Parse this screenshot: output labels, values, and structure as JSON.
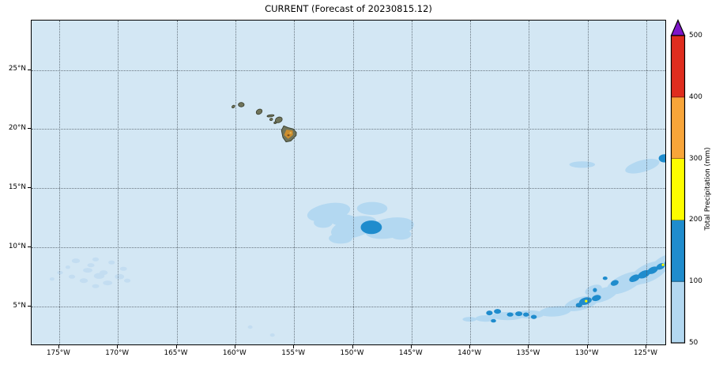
{
  "chart_data": {
    "type": "heatmap",
    "title": "CURRENT (Forecast of 20230815.12)",
    "ocean_color": "#d3e7f4",
    "grid": true,
    "x_axis": {
      "lon_range": [
        -177.35,
        -123.25
      ],
      "ticks": [
        {
          "label": "175°W",
          "lon": -175
        },
        {
          "label": "170°W",
          "lon": -170
        },
        {
          "label": "165°W",
          "lon": -165
        },
        {
          "label": "160°W",
          "lon": -160
        },
        {
          "label": "155°W",
          "lon": -155
        },
        {
          "label": "150°W",
          "lon": -150
        },
        {
          "label": "145°W",
          "lon": -145
        },
        {
          "label": "140°W",
          "lon": -140
        },
        {
          "label": "135°W",
          "lon": -135
        },
        {
          "label": "130°W",
          "lon": -130
        },
        {
          "label": "125°W",
          "lon": -125
        }
      ]
    },
    "y_axis": {
      "lat_range": [
        1.67,
        29.17
      ],
      "ticks": [
        {
          "label": "25°N",
          "lat": 25
        },
        {
          "label": "20°N",
          "lat": 20
        },
        {
          "label": "15°N",
          "lat": 15
        },
        {
          "label": "10°N",
          "lat": 10
        },
        {
          "label": "5°N",
          "lat": 5
        }
      ]
    },
    "colorbar": {
      "label": "Total Precipitation (mm)",
      "position": "right",
      "tick_labels": [
        "50",
        "100",
        "200",
        "300",
        "400",
        "500"
      ],
      "segments": [
        {
          "range": "50-100",
          "color": "#b3d8f1"
        },
        {
          "range": "100-200",
          "color": "#1f8ccd"
        },
        {
          "range": "200-300",
          "color": "#fdfd00"
        },
        {
          "range": "300-400",
          "color": "#f8a539"
        },
        {
          "range": "400-500",
          "color": "#df2d1e"
        }
      ],
      "over_arrow": {
        "range": ">500",
        "color": "#7e16c9"
      }
    },
    "islands": {
      "fill": "#70745a",
      "stroke": "#383d2c",
      "features": [
        {
          "name": "Niihau",
          "type": "ellipse",
          "lat": 21.9,
          "lon": -160.17,
          "w": 0.28,
          "h": 0.2,
          "rot": -40
        },
        {
          "name": "Kauai",
          "type": "ellipse",
          "lat": 22.06,
          "lon": -159.5,
          "w": 0.5,
          "h": 0.38,
          "rot": 0
        },
        {
          "name": "Oahu",
          "type": "ellipse",
          "lat": 21.47,
          "lon": -157.97,
          "w": 0.55,
          "h": 0.4,
          "rot": -35
        },
        {
          "name": "Molokai",
          "type": "ellipse",
          "lat": 21.12,
          "lon": -157.0,
          "w": 0.6,
          "h": 0.18,
          "rot": -8
        },
        {
          "name": "Lanai",
          "type": "ellipse",
          "lat": 20.82,
          "lon": -156.95,
          "w": 0.26,
          "h": 0.2,
          "rot": -20
        },
        {
          "name": "Kahoolawe",
          "type": "ellipse",
          "lat": 20.54,
          "lon": -156.6,
          "w": 0.24,
          "h": 0.16,
          "rot": -20
        },
        {
          "name": "Maui",
          "type": "ellipse",
          "lat": 20.78,
          "lon": -156.3,
          "w": 0.62,
          "h": 0.45,
          "rot": -25
        },
        {
          "name": "Hawaii Big Island",
          "type": "polygon",
          "points": [
            [
              20.27,
              -155.88
            ],
            [
              20.12,
              -155.5
            ],
            [
              20.02,
              -155.08
            ],
            [
              19.72,
              -154.8
            ],
            [
              19.45,
              -154.82
            ],
            [
              19.0,
              -155.28
            ],
            [
              18.92,
              -155.68
            ],
            [
              19.3,
              -155.95
            ],
            [
              19.9,
              -156.07
            ]
          ]
        }
      ],
      "big_island_detail": {
        "orange_fill": "#cd8e2e",
        "orange_polygon": [
          [
            19.95,
            -155.65
          ],
          [
            19.88,
            -155.12
          ],
          [
            19.5,
            -155.1
          ],
          [
            19.18,
            -155.5
          ],
          [
            19.5,
            -155.85
          ]
        ],
        "dark_spot": {
          "color": "#7a4a18",
          "lat": 19.48,
          "lon": -155.48,
          "w": 0.2,
          "h": 0.15
        },
        "tan_spot": {
          "color": "#e3c063",
          "lat": 19.68,
          "lon": -155.3,
          "w": 0.18,
          "h": 0.12
        }
      }
    },
    "precipitation": {
      "level_colors": {
        "trace": "#c3ddf1",
        "light": "#b3d8f1",
        "medium": "#1f8ccd",
        "heavy": "#fdfd00"
      },
      "blob_format": "[lat, lon, width_deg, height_deg, rotation_deg]",
      "regions": [
        {
          "name": "west-scattered-showers",
          "level": "trace",
          "blobs": [
            [
              8.87,
              -173.58,
              0.7,
              0.4,
              0
            ],
            [
              8.99,
              -171.9,
              0.55,
              0.35,
              0
            ],
            [
              8.73,
              -170.54,
              0.55,
              0.35,
              0
            ],
            [
              8.2,
              -169.53,
              0.6,
              0.35,
              0
            ],
            [
              8.07,
              -172.57,
              0.8,
              0.4,
              0
            ],
            [
              7.87,
              -171.22,
              0.7,
              0.4,
              0
            ],
            [
              7.53,
              -169.87,
              0.8,
              0.45,
              0
            ],
            [
              7.53,
              -173.92,
              0.55,
              0.35,
              0
            ],
            [
              7.87,
              -174.93,
              0.5,
              0.3,
              0
            ],
            [
              7.2,
              -172.91,
              0.7,
              0.4,
              0
            ],
            [
              7.0,
              -170.88,
              0.8,
              0.4,
              0
            ],
            [
              7.2,
              -169.2,
              0.55,
              0.35,
              0
            ],
            [
              6.73,
              -171.9,
              0.6,
              0.35,
              0
            ],
            [
              8.33,
              -174.26,
              0.4,
              0.3,
              0
            ],
            [
              7.33,
              -175.61,
              0.4,
              0.3,
              0
            ],
            [
              8.5,
              -172.3,
              0.6,
              0.35,
              0
            ],
            [
              7.6,
              -171.6,
              0.9,
              0.5,
              0
            ]
          ]
        },
        {
          "name": "central-rain-area",
          "level": "light",
          "blobs": [
            [
              12.97,
              -152.05,
              3.7,
              1.5,
              -10
            ],
            [
              11.7,
              -149.9,
              4.0,
              1.7,
              -15
            ],
            [
              13.3,
              -148.35,
              2.6,
              1.1,
              0
            ],
            [
              11.63,
              -146.87,
              4.2,
              1.7,
              -10
            ],
            [
              11.1,
              -145.92,
              1.8,
              0.9,
              0
            ],
            [
              10.77,
              -151.04,
              2.0,
              0.9,
              0
            ],
            [
              12.1,
              -152.52,
              1.6,
              0.9,
              0
            ],
            [
              12.3,
              -150.8,
              2.2,
              1.0,
              0
            ]
          ]
        },
        {
          "name": "central-rain-core",
          "level": "medium",
          "blobs": [
            [
              11.7,
              -148.42,
              1.8,
              1.15,
              0
            ]
          ]
        },
        {
          "name": "northeast-patch",
          "level": "light",
          "blobs": [
            [
              17.0,
              -130.46,
              2.2,
              0.55,
              0
            ],
            [
              16.87,
              -125.34,
              3.0,
              1.0,
              -15
            ]
          ]
        },
        {
          "name": "northeast-patch-core",
          "level": "medium",
          "blobs": [
            [
              17.53,
              -123.45,
              1.0,
              0.7,
              0
            ]
          ]
        },
        {
          "name": "itcz-band",
          "level": "light",
          "blobs": [
            [
              3.93,
              -140.05,
              1.2,
              0.4,
              0
            ],
            [
              4.0,
              -138.7,
              1.7,
              0.55,
              0
            ],
            [
              4.2,
              -136.81,
              2.7,
              0.7,
              0
            ],
            [
              4.33,
              -134.92,
              2.4,
              0.7,
              0
            ],
            [
              4.6,
              -132.76,
              2.7,
              0.85,
              -5
            ],
            [
              5.27,
              -130.53,
              3.0,
              1.1,
              -15
            ],
            [
              6.0,
              -128.71,
              2.7,
              1.1,
              -20
            ],
            [
              6.4,
              -129.5,
              1.5,
              0.8,
              -20
            ],
            [
              7.0,
              -126.82,
              3.4,
              1.4,
              -25
            ],
            [
              7.4,
              -125.6,
              2.0,
              1.0,
              -25
            ],
            [
              7.87,
              -124.8,
              3.4,
              1.5,
              -25
            ],
            [
              8.67,
              -123.31,
              2.8,
              1.3,
              -25
            ]
          ]
        },
        {
          "name": "itcz-band-cores",
          "level": "medium",
          "blobs": [
            [
              4.47,
              -138.36,
              0.55,
              0.4,
              0
            ],
            [
              4.6,
              -137.68,
              0.6,
              0.4,
              0
            ],
            [
              4.33,
              -136.6,
              0.55,
              0.35,
              0
            ],
            [
              4.4,
              -135.86,
              0.6,
              0.4,
              0
            ],
            [
              4.33,
              -135.25,
              0.5,
              0.35,
              0
            ],
            [
              4.13,
              -134.58,
              0.5,
              0.35,
              0
            ],
            [
              3.8,
              -138.02,
              0.45,
              0.3,
              0
            ],
            [
              5.13,
              -130.73,
              0.55,
              0.4,
              0
            ],
            [
              5.47,
              -130.19,
              1.1,
              0.6,
              -15
            ],
            [
              5.73,
              -129.25,
              0.8,
              0.5,
              -15
            ],
            [
              6.4,
              -129.38,
              0.35,
              0.35,
              0
            ],
            [
              7.4,
              -128.51,
              0.4,
              0.3,
              0
            ],
            [
              7.0,
              -127.7,
              0.7,
              0.45,
              -20
            ],
            [
              7.4,
              -126.01,
              0.95,
              0.55,
              -25
            ],
            [
              7.73,
              -125.2,
              1.1,
              0.6,
              -25
            ],
            [
              8.07,
              -124.46,
              0.95,
              0.55,
              -25
            ],
            [
              8.4,
              -123.78,
              0.8,
              0.5,
              -25
            ],
            [
              8.73,
              -123.11,
              0.7,
              0.5,
              -25
            ]
          ]
        },
        {
          "name": "itcz-band-peaks",
          "level": "heavy",
          "blobs": [
            [
              5.47,
              -130.13,
              0.22,
              0.22,
              0
            ],
            [
              8.53,
              -123.58,
              0.22,
              0.22,
              0
            ]
          ]
        },
        {
          "name": "south-specks",
          "level": "trace",
          "blobs": [
            [
              3.27,
              -158.74,
              0.4,
              0.3,
              0
            ],
            [
              2.6,
              -156.85,
              0.4,
              0.3,
              0
            ]
          ]
        }
      ]
    }
  }
}
